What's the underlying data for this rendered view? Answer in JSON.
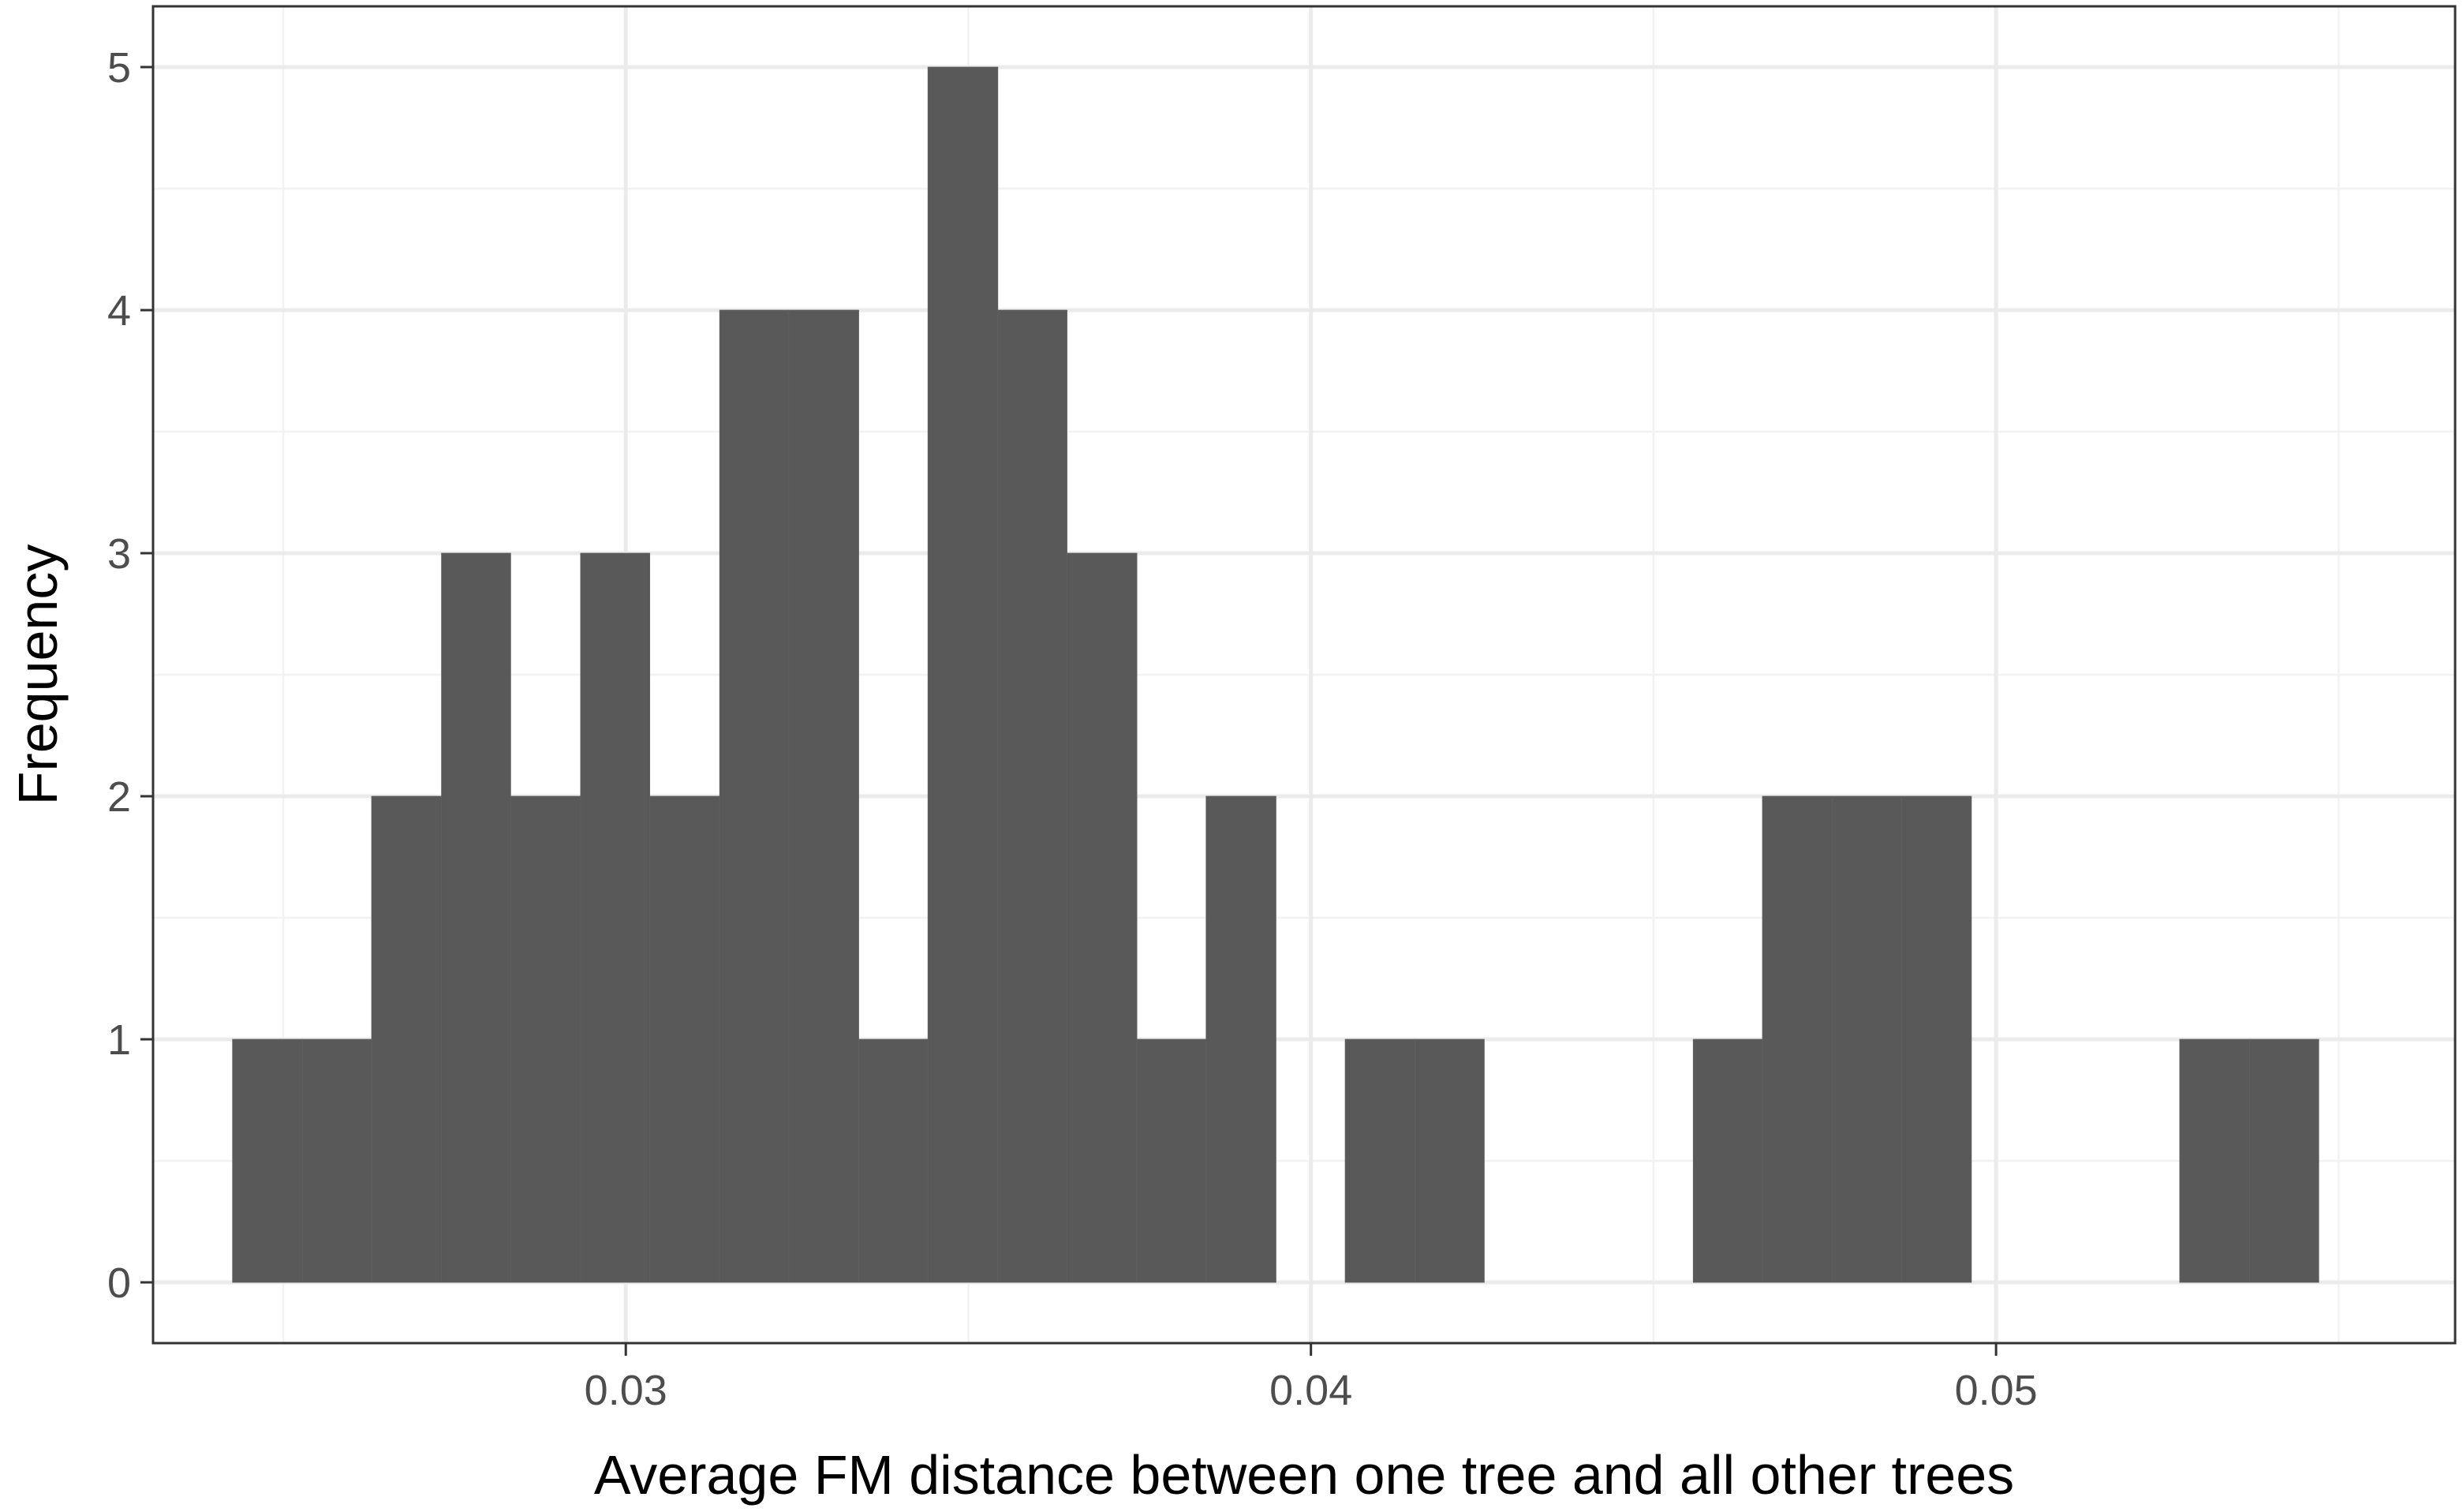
{
  "chart_data": {
    "type": "bar",
    "title": "",
    "xlabel": "Average FM distance between one tree and all other trees",
    "ylabel": "Frequency",
    "xlim": [
      0.0231,
      0.0567
    ],
    "ylim": [
      -0.25,
      5.25
    ],
    "x_ticks": [
      0.03,
      0.04,
      0.05
    ],
    "x_tick_labels": [
      "0.03",
      "0.04",
      "0.05"
    ],
    "y_ticks": [
      0,
      1,
      2,
      3,
      4,
      5
    ],
    "y_tick_labels": [
      "0",
      "1",
      "2",
      "3",
      "4",
      "5"
    ],
    "grid": true,
    "bin_width": 0.001015,
    "bins": [
      {
        "x0": 0.02426,
        "x1": 0.02528,
        "count": 1
      },
      {
        "x0": 0.02528,
        "x1": 0.02629,
        "count": 1
      },
      {
        "x0": 0.02629,
        "x1": 0.02731,
        "count": 2
      },
      {
        "x0": 0.02731,
        "x1": 0.02832,
        "count": 3
      },
      {
        "x0": 0.02832,
        "x1": 0.02934,
        "count": 2
      },
      {
        "x0": 0.02934,
        "x1": 0.03035,
        "count": 3
      },
      {
        "x0": 0.03035,
        "x1": 0.03137,
        "count": 2
      },
      {
        "x0": 0.03137,
        "x1": 0.03238,
        "count": 4
      },
      {
        "x0": 0.03238,
        "x1": 0.0334,
        "count": 4
      },
      {
        "x0": 0.0334,
        "x1": 0.03441,
        "count": 1
      },
      {
        "x0": 0.03441,
        "x1": 0.03543,
        "count": 5
      },
      {
        "x0": 0.03543,
        "x1": 0.03644,
        "count": 4
      },
      {
        "x0": 0.03644,
        "x1": 0.03746,
        "count": 3
      },
      {
        "x0": 0.03746,
        "x1": 0.03847,
        "count": 1
      },
      {
        "x0": 0.03847,
        "x1": 0.03949,
        "count": 2
      },
      {
        "x0": 0.03949,
        "x1": 0.0405,
        "count": 0
      },
      {
        "x0": 0.0405,
        "x1": 0.04152,
        "count": 1
      },
      {
        "x0": 0.04152,
        "x1": 0.04253,
        "count": 1
      },
      {
        "x0": 0.04253,
        "x1": 0.04355,
        "count": 0
      },
      {
        "x0": 0.04355,
        "x1": 0.04456,
        "count": 0
      },
      {
        "x0": 0.04456,
        "x1": 0.04558,
        "count": 0
      },
      {
        "x0": 0.04558,
        "x1": 0.04659,
        "count": 1
      },
      {
        "x0": 0.04659,
        "x1": 0.04761,
        "count": 2
      },
      {
        "x0": 0.04761,
        "x1": 0.04862,
        "count": 2
      },
      {
        "x0": 0.04862,
        "x1": 0.04964,
        "count": 2
      },
      {
        "x0": 0.04964,
        "x1": 0.05065,
        "count": 0
      },
      {
        "x0": 0.05065,
        "x1": 0.05167,
        "count": 0
      },
      {
        "x0": 0.05167,
        "x1": 0.05268,
        "count": 0
      },
      {
        "x0": 0.05268,
        "x1": 0.0537,
        "count": 1
      },
      {
        "x0": 0.0537,
        "x1": 0.05471,
        "count": 1
      }
    ],
    "colors": {
      "bar_fill": "#595959",
      "panel_border": "#333333",
      "grid_major": "#ebebeb",
      "grid_minor": "#f2f2f2",
      "tick_text": "#4d4d4d"
    }
  }
}
